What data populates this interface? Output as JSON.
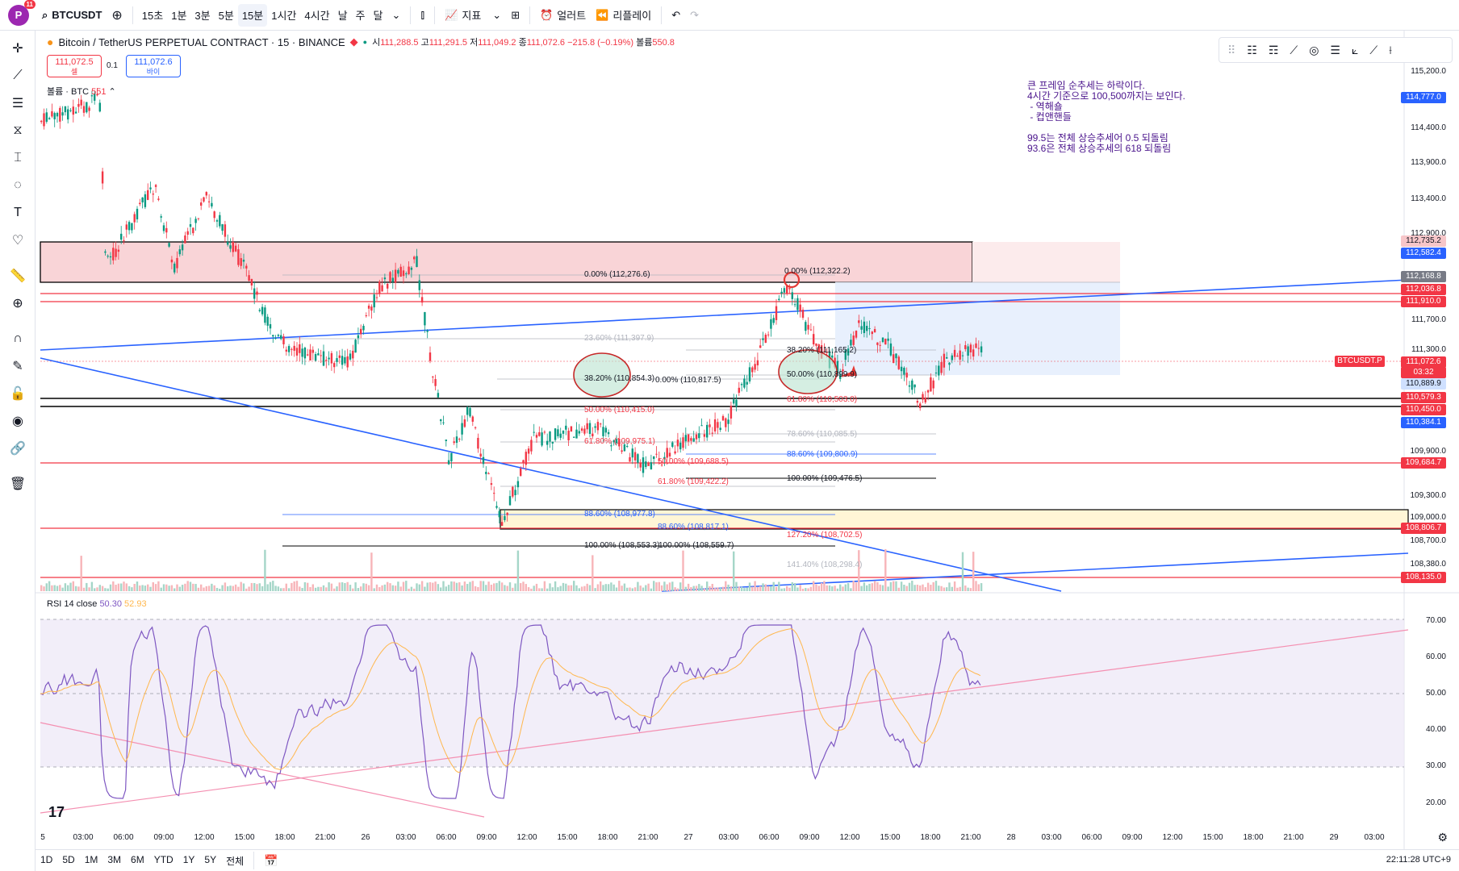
{
  "toolbar": {
    "avatar_letter": "P",
    "avatar_badge": "11",
    "symbol": "BTCUSDT",
    "intervals": [
      "15초",
      "1분",
      "3분",
      "5분",
      "15분",
      "1시간",
      "4시간",
      "날",
      "주",
      "달"
    ],
    "active_interval": "15분",
    "indicators_label": "지표",
    "alerts_label": "얼러트",
    "replay_label": "리플레이"
  },
  "chart": {
    "title": "Bitcoin / TetherUS PERPETUAL CONTRACT · 15 · BINANCE",
    "ohlc": {
      "open_label": "시",
      "open": "111,288.5",
      "high_label": "고",
      "high": "111,291.5",
      "low_label": "저",
      "low": "111,049.2",
      "close_label": "종",
      "close": "111,072.6",
      "change": "−215.8 (−0.19%)",
      "volume_label": "볼륨",
      "volume": "550.8"
    },
    "sell_price": "111,072.5",
    "sell_label": "셀",
    "spread": "0.1",
    "buy_price": "111,072.6",
    "buy_label": "바이",
    "volume_legend": "볼륨 · BTC",
    "volume_value": "551"
  },
  "notes": "큰 프레임 순추세는 하락이다.\n4시간 기준으로 100,500까지는 보인다.\n - 역해숄\n - 컵앤핸들\n\n99.5는 전체 상승추세어 0.5 되돌림\n93.6은 전체 상승추세의 618 되돌림",
  "price_axis": [
    "115,200.0",
    "114,400.0",
    "113,900.0",
    "113,400.0",
    "112,900.0",
    "111,700.0",
    "111,300.0",
    "109,900.0",
    "109,300.0",
    "109,000.0",
    "108,700.0",
    "108,380.0"
  ],
  "price_tags": [
    {
      "text": "114,777.0",
      "color": "#2962ff"
    },
    {
      "text": "112,735.2",
      "color": "#f7c6c9",
      "dark": true
    },
    {
      "text": "112,582.4",
      "color": "#2962ff"
    },
    {
      "text": "112,168.8",
      "color": "#787b86"
    },
    {
      "text": "112,036.8",
      "color": "#f23645"
    },
    {
      "text": "111,910.0",
      "color": "#f23645"
    },
    {
      "text": "111,072.6",
      "color": "#f23645"
    },
    {
      "text": "03:32",
      "color": "#f23645"
    },
    {
      "text": "110,889.9",
      "color": "#cfe0ff",
      "dark": true
    },
    {
      "text": "110,579.3",
      "color": "#f23645"
    },
    {
      "text": "110,450.0",
      "color": "#f23645"
    },
    {
      "text": "110,384.1",
      "color": "#2962ff"
    },
    {
      "text": "109,684.7",
      "color": "#f23645"
    },
    {
      "text": "108,806.7",
      "color": "#f23645"
    },
    {
      "text": "108,135.0",
      "color": "#f23645"
    }
  ],
  "symbol_tag": "BTCUSDT.P",
  "fibs": [
    "0.00% (112,276.6)",
    "0.00% (112,322.2)",
    "23.60% (111,397.9)",
    "38.20% (110,854.3)",
    "0.00% (110,817.5)",
    "38.20% (111,165.2)",
    "50.00% (110,899.9)",
    "50.00% (110,415.0)",
    "61.80% (110,503.0)",
    "61.80% (109,975.1)",
    "78.60% (110,085.5)",
    "88.60% (109,800.9)",
    "50.00% (109,688.5)",
    "61.80% (109,422.2)",
    "100.00% (109,476.5)",
    "88.60% (108,977.8)",
    "88.60% (108,817.1)",
    "127.20% (108,702.5)",
    "100.00% (108,553.3)",
    "100.00% (108,559.7)",
    "141.40% (108,298.4)"
  ],
  "rsi": {
    "label": "RSI 14 close",
    "value1": "50.30",
    "value2": "52.93",
    "axis": [
      "70.00",
      "60.00",
      "50.00",
      "40.00",
      "30.00",
      "20.00"
    ]
  },
  "time_axis": [
    "5",
    "03:00",
    "06:00",
    "09:00",
    "12:00",
    "15:00",
    "18:00",
    "21:00",
    "26",
    "03:00",
    "06:00",
    "09:00",
    "12:00",
    "15:00",
    "18:00",
    "21:00",
    "27",
    "03:00",
    "06:00",
    "09:00",
    "12:00",
    "15:00",
    "18:00",
    "21:00",
    "28",
    "03:00",
    "06:00",
    "09:00",
    "12:00",
    "15:00",
    "18:00",
    "21:00",
    "29",
    "03:00"
  ],
  "ranges": [
    "1D",
    "5D",
    "1M",
    "3M",
    "6M",
    "YTD",
    "1Y",
    "5Y",
    "전체"
  ],
  "clock": "22:11:28 UTC+9"
}
